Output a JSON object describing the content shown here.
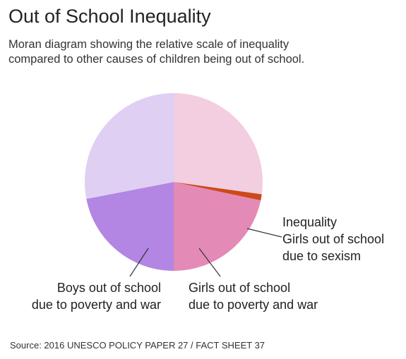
{
  "title": "Out of School Inequality",
  "subtitle_lines": [
    "Moran diagram showing the relative scale of inequality",
    "compared to other causes of children being out of school."
  ],
  "source": "Source: 2016 UNESCO POLICY PAPER 27 / FACT SHEET 37",
  "chart_data": {
    "type": "pie",
    "title": "Out of School Inequality",
    "slices": [
      {
        "key": "girls-in-school",
        "label_lines": [],
        "start_deg": 0,
        "end_deg": 98,
        "color": "#f3cde0"
      },
      {
        "key": "inequality",
        "label_lines": [
          "Inequality",
          "Girls out of school",
          "due to sexism"
        ],
        "start_deg": 98,
        "end_deg": 102,
        "color": "#cc4a19"
      },
      {
        "key": "girls-poverty-war",
        "label_lines": [
          "Girls out of school",
          "due to poverty and war"
        ],
        "start_deg": 102,
        "end_deg": 180,
        "color": "#e48ab7"
      },
      {
        "key": "boys-poverty-war",
        "label_lines": [
          "Boys out of school",
          "due to poverty and war"
        ],
        "start_deg": 180,
        "end_deg": 259,
        "color": "#b286e2"
      },
      {
        "key": "boys-in-school",
        "label_lines": [],
        "start_deg": 259,
        "end_deg": 360,
        "color": "#dfcff3"
      }
    ]
  }
}
